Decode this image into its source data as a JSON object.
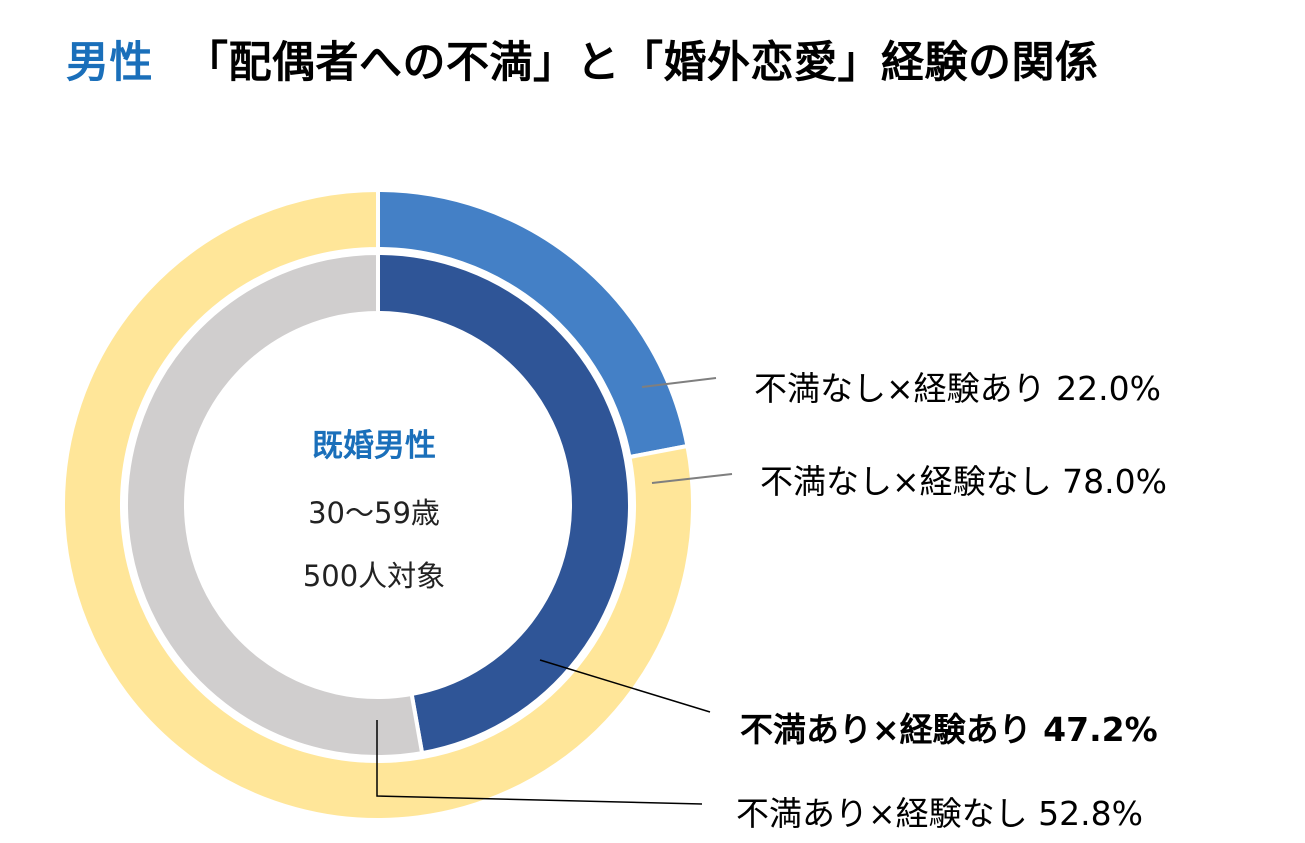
{
  "title": {
    "accent": "男性",
    "main": "「配偶者への不満」と「婚外恋愛」経験の関係"
  },
  "center_text": {
    "heading": "既婚男性",
    "age": "30〜59歳",
    "sample": "500人対象"
  },
  "colors": {
    "title_accent": "#1a6fba",
    "outer_experience": "#4480c6",
    "outer_no_experience": "#ffe699",
    "inner_experience": "#2f5597",
    "inner_no_experience": "#d0cece"
  },
  "chart_data": {
    "type": "pie",
    "subtype": "nested-donut",
    "title": "男性 「配偶者への不満」と「婚外恋愛」経験の関係",
    "series": [
      {
        "name": "不満なし",
        "ring": "outer",
        "slices": [
          {
            "label": "不満なし×経験あり",
            "value": 22.0,
            "value_text": "22.0%",
            "color": "#4480c6"
          },
          {
            "label": "不満なし×経験なし",
            "value": 78.0,
            "value_text": "78.0%",
            "color": "#ffe699"
          }
        ]
      },
      {
        "name": "不満あり",
        "ring": "inner",
        "slices": [
          {
            "label": "不満あり×経験あり",
            "value": 47.2,
            "value_text": "47.2%",
            "color": "#2f5597",
            "emphasis": true
          },
          {
            "label": "不満あり×経験なし",
            "value": 52.8,
            "value_text": "52.8%",
            "color": "#d0cece"
          }
        ]
      }
    ]
  }
}
